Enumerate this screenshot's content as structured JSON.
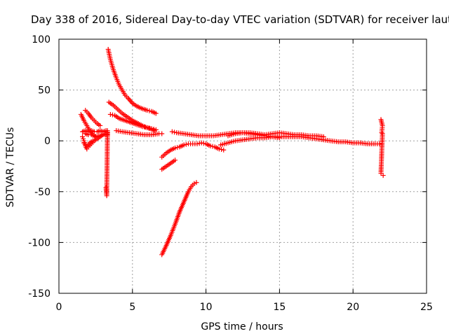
{
  "chart_data": {
    "type": "scatter",
    "title": "Day 338 of 2016, Sidereal Day-to-day VTEC variation (SDTVAR) for receiver laut",
    "xlabel": "GPS time / hours",
    "ylabel": "SDTVAR / TECUs",
    "xlim": [
      0,
      25
    ],
    "ylim": [
      -150,
      100
    ],
    "xticks": [
      0,
      5,
      10,
      15,
      20,
      25
    ],
    "yticks": [
      -150,
      -100,
      -50,
      0,
      50,
      100
    ],
    "xtick_labels": [
      "0",
      "5",
      "10",
      "15",
      "20",
      "25"
    ],
    "ytick_labels": [
      "-150",
      "-100",
      "-50",
      "0",
      "50",
      "100"
    ],
    "grid": true,
    "marker": "+",
    "series": [
      {
        "name": "SDTVAR",
        "color": "#ff0000",
        "segments": [
          {
            "x": [
              3.35,
              3.5,
              3.7,
              3.9,
              4.1,
              4.3,
              4.5,
              4.7,
              5.0,
              5.3,
              5.6,
              6.0,
              6.3,
              6.6
            ],
            "y": [
              90,
              80,
              70,
              62,
              55,
              50,
              45,
              42,
              37,
              34,
              32,
              30,
              29,
              27
            ]
          },
          {
            "x": [
              3.4,
              3.7,
              4.0,
              4.3,
              4.6,
              5.0,
              5.4,
              5.8,
              6.2,
              6.5
            ],
            "y": [
              38,
              35,
              31,
              27,
              24,
              20,
              17,
              14,
              12,
              10
            ]
          },
          {
            "x": [
              3.5,
              3.8,
              4.1,
              4.5,
              4.9,
              5.3,
              5.7,
              6.0,
              6.3,
              6.6
            ],
            "y": [
              26,
              25,
              22,
              20,
              18,
              16,
              14,
              13,
              12,
              11
            ]
          },
          {
            "x": [
              3.9,
              4.3,
              4.8,
              5.3,
              5.8,
              6.3,
              6.8,
              7.0
            ],
            "y": [
              10,
              9,
              8,
              7,
              6,
              6,
              7,
              7
            ]
          },
          {
            "x": [
              1.5,
              1.7,
              1.9,
              2.1,
              2.3,
              2.5,
              2.6
            ],
            "y": [
              26,
              20,
              15,
              10,
              6,
              4,
              3
            ]
          },
          {
            "x": [
              1.8,
              2.0,
              2.2,
              2.4,
              2.6,
              2.8
            ],
            "y": [
              30,
              27,
              23,
              20,
              17,
              15
            ]
          },
          {
            "x": [
              1.6,
              1.8,
              2.0,
              2.2,
              2.4,
              2.6,
              2.8,
              3.0,
              3.2
            ],
            "y": [
              9,
              10,
              9,
              10,
              9,
              9,
              10,
              9,
              10
            ]
          },
          {
            "x": [
              1.6,
              1.7,
              1.8,
              1.9,
              2.0,
              2.2,
              2.4,
              2.6,
              2.8,
              3.0,
              3.2
            ],
            "y": [
              4,
              0,
              -5,
              -8,
              -6,
              -3,
              0,
              2,
              4,
              6,
              7
            ]
          },
          {
            "x": [
              1.8,
              2.0,
              2.2,
              2.4,
              2.6,
              2.8,
              3.0,
              3.2
            ],
            "y": [
              7,
              6,
              6,
              5,
              4,
              5,
              6,
              6
            ]
          },
          {
            "x": [
              1.7,
              1.9,
              2.1,
              2.3
            ],
            "y": [
              -2,
              -5,
              -2,
              0
            ]
          },
          {
            "x": [
              3.2,
              3.25,
              3.3,
              3.3
            ],
            "y": [
              -46,
              -54,
              10,
              6
            ]
          },
          {
            "x": [
              7.0,
              7.3,
              7.6,
              7.9,
              8.2,
              8.5,
              8.8,
              9.0,
              9.2,
              9.35
            ],
            "y": [
              -112,
              -103,
              -93,
              -82,
              -70,
              -60,
              -50,
              -45,
              -42,
              -41
            ]
          },
          {
            "x": [
              7.0,
              7.3,
              7.6,
              7.9
            ],
            "y": [
              -28,
              -25,
              -22,
              -19
            ]
          },
          {
            "x": [
              7.0,
              7.3,
              7.6,
              7.9,
              8.2,
              8.5,
              8.8,
              9.1,
              9.4,
              9.7,
              10.0,
              10.3,
              10.6,
              10.9,
              11.2
            ],
            "y": [
              -16,
              -12,
              -9,
              -7,
              -6,
              -4,
              -3,
              -3,
              -3,
              -2,
              -3,
              -5,
              -6,
              -8,
              -9
            ]
          },
          {
            "x": [
              7.7,
              8.0,
              8.5,
              9.0,
              9.5,
              10.0,
              10.5,
              11.0,
              11.5,
              12.0,
              12.5,
              13.0,
              13.5,
              14.0,
              14.5,
              15.0
            ],
            "y": [
              9,
              8,
              7,
              6,
              5,
              5,
              5,
              6,
              7,
              8,
              8,
              7,
              6,
              5,
              4,
              3
            ]
          },
          {
            "x": [
              11.0,
              11.5,
              12.0,
              12.5,
              13.0,
              13.5,
              14.0,
              14.5,
              15.0,
              15.5,
              16.0,
              16.5,
              17.0,
              17.5,
              18.0,
              18.5,
              19.0,
              19.5,
              20.0,
              20.5,
              21.0,
              21.5,
              21.8
            ],
            "y": [
              -4,
              -2,
              0,
              1,
              2,
              3,
              3,
              4,
              4,
              4,
              4,
              4,
              3,
              2,
              1,
              0,
              -1,
              -1,
              -2,
              -2,
              -3,
              -3,
              -3
            ]
          },
          {
            "x": [
              11.5,
              12.0,
              12.5,
              13.0,
              13.5,
              14.0,
              14.5,
              15.0,
              15.5,
              16.0,
              16.5,
              17.0,
              17.5,
              18.0
            ],
            "y": [
              5,
              7,
              8,
              8,
              7,
              6,
              7,
              8,
              7,
              6,
              6,
              5,
              5,
              4
            ]
          },
          {
            "x": [
              21.9,
              22.0,
              21.95,
              22.0,
              21.9,
              22.05
            ],
            "y": [
              21,
              15,
              8,
              7,
              -32,
              -34
            ]
          }
        ]
      }
    ]
  }
}
